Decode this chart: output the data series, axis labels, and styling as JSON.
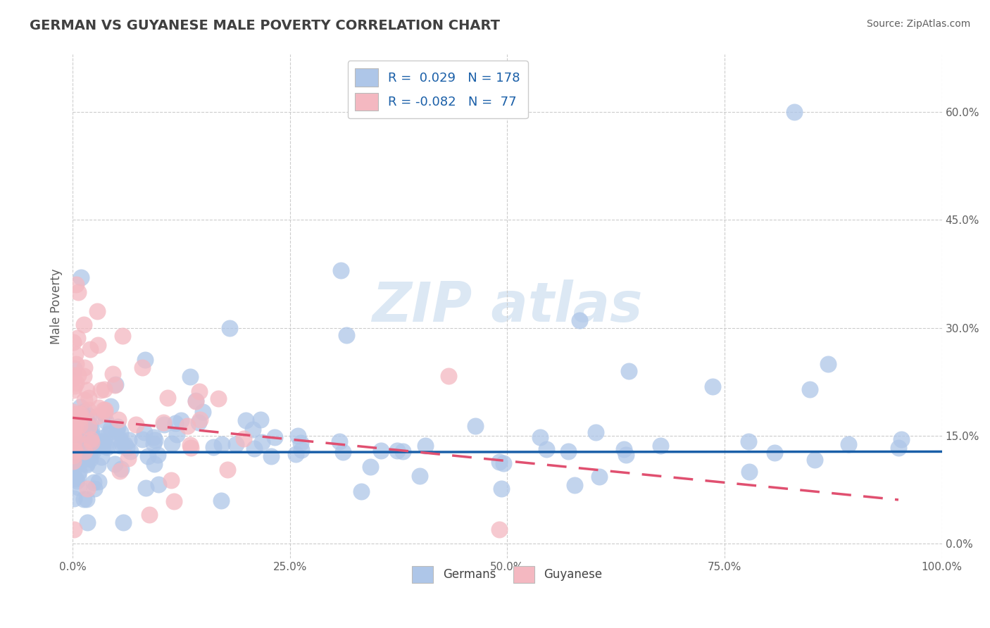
{
  "title": "GERMAN VS GUYANESE MALE POVERTY CORRELATION CHART",
  "source": "Source: ZipAtlas.com",
  "xlabel": "",
  "ylabel": "Male Poverty",
  "xlim": [
    0,
    1
  ],
  "ylim": [
    -0.02,
    0.68
  ],
  "yticks": [
    0.0,
    0.15,
    0.3,
    0.45,
    0.6
  ],
  "ytick_labels": [
    "0.0%",
    "15.0%",
    "30.0%",
    "45.0%",
    "60.0%"
  ],
  "xticks": [
    0.0,
    0.25,
    0.5,
    0.75,
    1.0
  ],
  "xtick_labels": [
    "0.0%",
    "25.0%",
    "50.0%",
    "75.0%",
    "100.0%"
  ],
  "german_R": 0.029,
  "german_N": 178,
  "guyanese_R": -0.082,
  "guyanese_N": 77,
  "german_color": "#aec6e8",
  "guyanese_color": "#f4b8c1",
  "german_line_color": "#1a5fa8",
  "guyanese_line_color": "#e05070",
  "background_color": "#ffffff",
  "grid_color": "#cccccc",
  "legend_R_color": "#1a5fa8",
  "title_color": "#404040",
  "axis_label_color": "#606060",
  "watermark_color": "#dce8f4",
  "watermark_text": "ZIPatlas"
}
